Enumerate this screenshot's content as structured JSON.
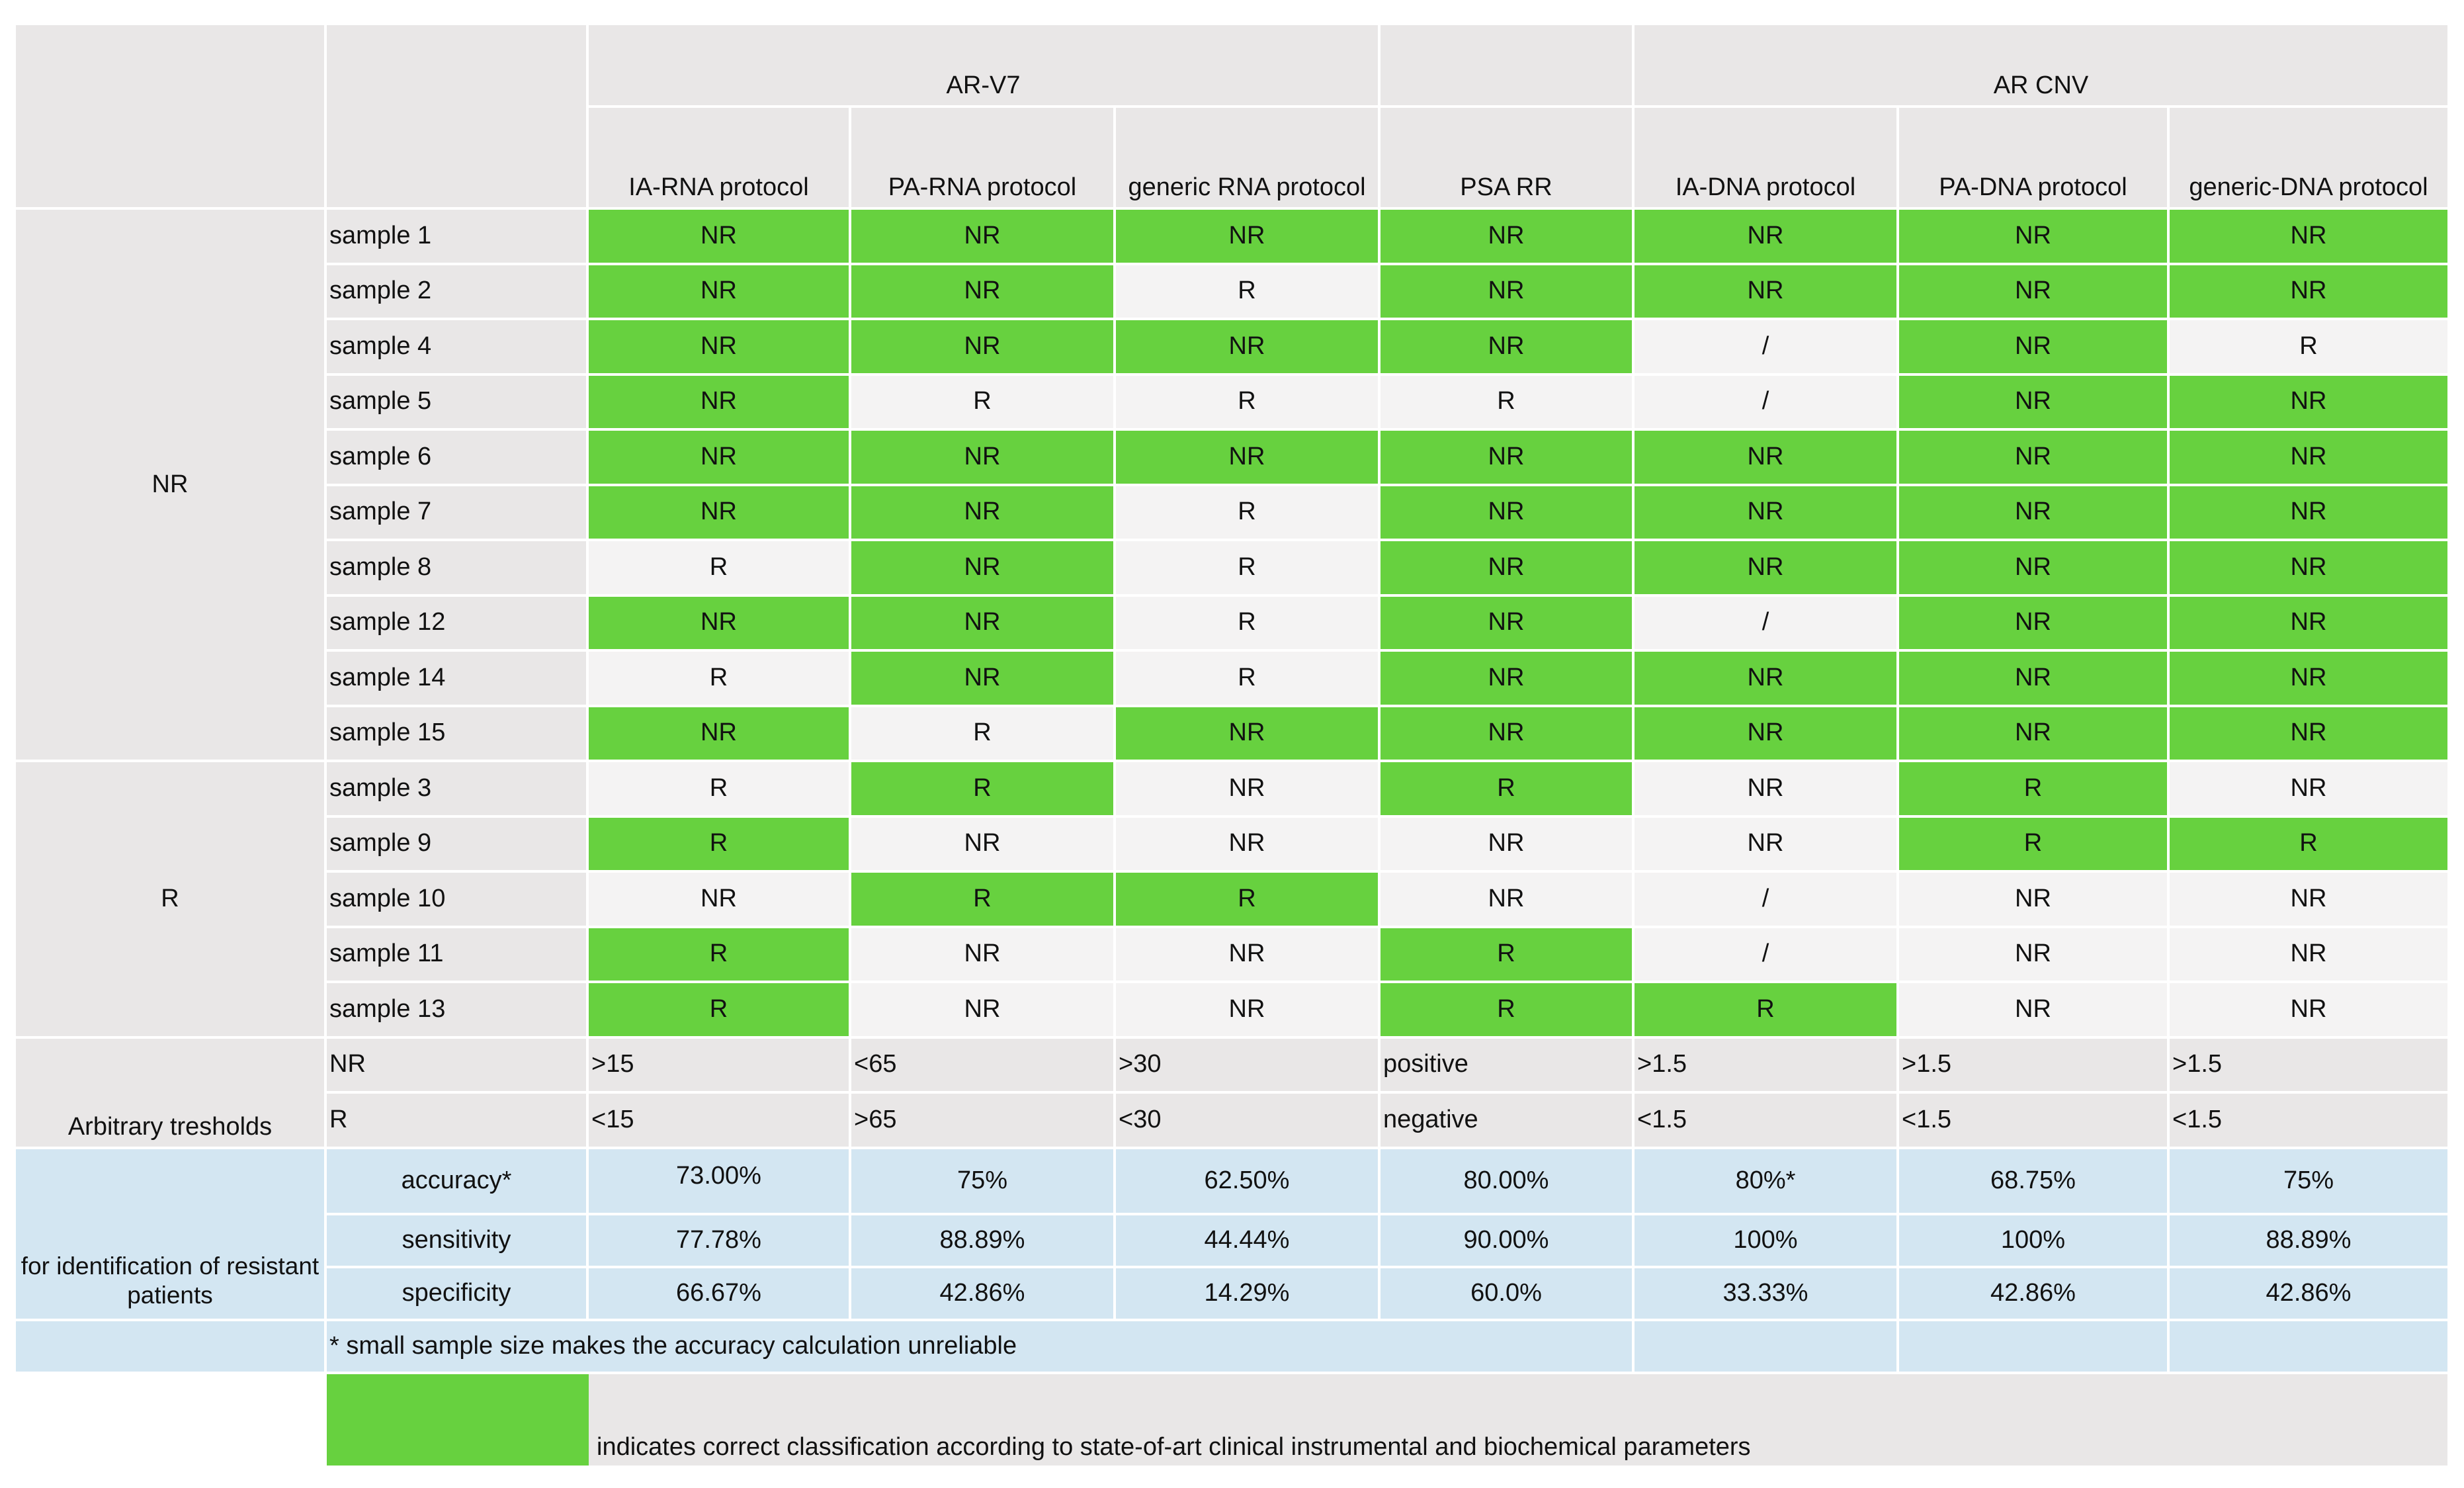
{
  "header": {
    "group_arv7": "AR-V7",
    "group_arcnv": "AR CNV",
    "columns": [
      "IA-RNA protocol",
      "PA-RNA protocol",
      "generic RNA protocol",
      "PSA RR",
      "IA-DNA protocol",
      "PA-DNA protocol",
      "generic-DNA protocol"
    ]
  },
  "groups": {
    "nr": "NR",
    "r": "R"
  },
  "rows": [
    {
      "sample": "sample 1",
      "values": [
        "NR",
        "NR",
        "NR",
        "NR",
        "NR",
        "NR",
        "NR"
      ],
      "correct": [
        true,
        true,
        true,
        true,
        true,
        true,
        true
      ]
    },
    {
      "sample": "sample 2",
      "values": [
        "NR",
        "NR",
        "R",
        "NR",
        "NR",
        "NR",
        "NR"
      ],
      "correct": [
        true,
        true,
        false,
        true,
        true,
        true,
        true
      ]
    },
    {
      "sample": "sample 4",
      "values": [
        "NR",
        "NR",
        "NR",
        "NR",
        "/",
        "NR",
        "R"
      ],
      "correct": [
        true,
        true,
        true,
        true,
        false,
        true,
        false
      ]
    },
    {
      "sample": "sample 5",
      "values": [
        "NR",
        "R",
        "R",
        "R",
        "/",
        "NR",
        "NR"
      ],
      "correct": [
        true,
        false,
        false,
        false,
        false,
        true,
        true
      ]
    },
    {
      "sample": "sample 6",
      "values": [
        "NR",
        "NR",
        "NR",
        "NR",
        "NR",
        "NR",
        "NR"
      ],
      "correct": [
        true,
        true,
        true,
        true,
        true,
        true,
        true
      ]
    },
    {
      "sample": "sample 7",
      "values": [
        "NR",
        "NR",
        "R",
        "NR",
        "NR",
        "NR",
        "NR"
      ],
      "correct": [
        true,
        true,
        false,
        true,
        true,
        true,
        true
      ]
    },
    {
      "sample": "sample 8",
      "values": [
        "R",
        "NR",
        "R",
        "NR",
        "NR",
        "NR",
        "NR"
      ],
      "correct": [
        false,
        true,
        false,
        true,
        true,
        true,
        true
      ]
    },
    {
      "sample": "sample 12",
      "values": [
        "NR",
        "NR",
        "R",
        "NR",
        "/",
        "NR",
        "NR"
      ],
      "correct": [
        true,
        true,
        false,
        true,
        false,
        true,
        true
      ]
    },
    {
      "sample": "sample 14",
      "values": [
        "R",
        "NR",
        "R",
        "NR",
        "NR",
        "NR",
        "NR"
      ],
      "correct": [
        false,
        true,
        false,
        true,
        true,
        true,
        true
      ]
    },
    {
      "sample": "sample 15",
      "values": [
        "NR",
        "R",
        "NR",
        "NR",
        "NR",
        "NR",
        "NR"
      ],
      "correct": [
        true,
        false,
        true,
        true,
        true,
        true,
        true
      ]
    },
    {
      "sample": "sample 3",
      "values": [
        "R",
        "R",
        "NR",
        "R",
        "NR",
        "R",
        "NR"
      ],
      "correct": [
        false,
        true,
        false,
        true,
        false,
        true,
        false
      ]
    },
    {
      "sample": "sample 9",
      "values": [
        "R",
        "NR",
        "NR",
        "NR",
        "NR",
        "R",
        "R"
      ],
      "correct": [
        true,
        false,
        false,
        false,
        false,
        true,
        true
      ]
    },
    {
      "sample": "sample 10",
      "values": [
        "NR",
        "R",
        "R",
        "NR",
        "/",
        "NR",
        "NR"
      ],
      "correct": [
        false,
        true,
        true,
        false,
        false,
        false,
        false
      ]
    },
    {
      "sample": "sample 11",
      "values": [
        "R",
        "NR",
        "NR",
        "R",
        "/",
        "NR",
        "NR"
      ],
      "correct": [
        true,
        false,
        false,
        true,
        false,
        false,
        false
      ]
    },
    {
      "sample": "sample 13",
      "values": [
        "R",
        "NR",
        "NR",
        "R",
        "R",
        "NR",
        "NR"
      ],
      "correct": [
        true,
        false,
        false,
        true,
        true,
        false,
        false
      ]
    }
  ],
  "thresholds": {
    "label": "Arbitrary tresholds",
    "nr_label": "NR",
    "r_label": "R",
    "nr": [
      ">15",
      "<65",
      ">30",
      "positive",
      ">1.5",
      ">1.5",
      ">1.5"
    ],
    "r": [
      "<15",
      ">65",
      "<30",
      "negative",
      "<1.5",
      "<1.5",
      "<1.5"
    ]
  },
  "metrics": {
    "label": "for identification of resistant patients",
    "accuracy_label": "accuracy*",
    "sensitivity_label": "sensitivity",
    "specificity_label": "specificity",
    "accuracy": [
      "73.00%",
      "75%",
      "62.50%",
      "80.00%",
      "80%*",
      "68.75%",
      "75%"
    ],
    "sensitivity": [
      "77.78%",
      "88.89%",
      "44.44%",
      "90.00%",
      "100%",
      "100%",
      "88.89%"
    ],
    "specificity": [
      "66.67%",
      "42.86%",
      "14.29%",
      "60.0%",
      "33.33%",
      "42.86%",
      "42.86%"
    ]
  },
  "footnote": "* small sample size makes the accuracy calculation unreliable",
  "legend": "indicates correct classification according to state-of-art clinical instrumental and biochemical parameters",
  "colors": {
    "correct": "#67d13f",
    "cell": "#f4f3f3",
    "header": "#e9e7e7",
    "metrics": "#d3e6f2"
  }
}
